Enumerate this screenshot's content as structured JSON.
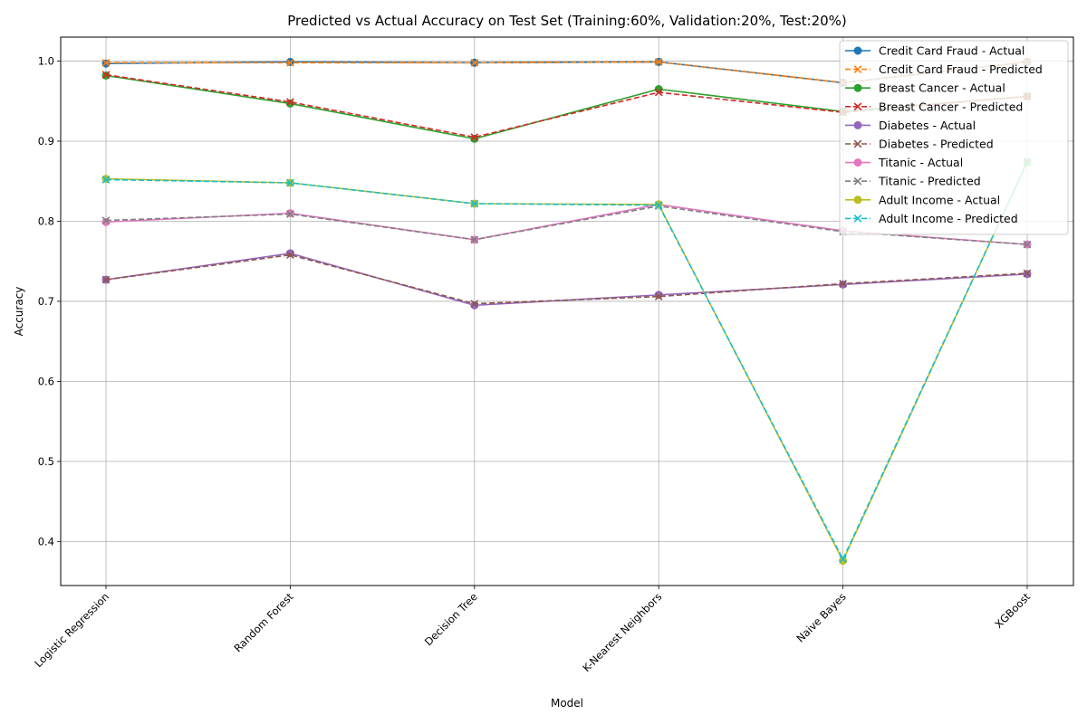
{
  "chart_data": {
    "type": "line",
    "title": "Predicted vs Actual Accuracy on Test Set (Training:60%, Validation:20%, Test:20%)",
    "xlabel": "Model",
    "ylabel": "Accuracy",
    "ylim": [
      0.345,
      1.03
    ],
    "yticks": [
      "0.4",
      "0.5",
      "0.6",
      "0.7",
      "0.8",
      "0.9",
      "1.0"
    ],
    "grid": true,
    "legend_position": "top-right",
    "categories": [
      "Logistic Regression",
      "Random Forest",
      "Decision Tree",
      "K-Nearest Neighbors",
      "Naive Bayes",
      "XGBoost"
    ],
    "series": [
      {
        "name": "Credit Card Fraud - Actual",
        "color": "#1f77b4",
        "dash": "solid",
        "marker": "circle",
        "values": [
          0.997,
          0.999,
          0.998,
          0.999,
          0.973,
          0.999
        ]
      },
      {
        "name": "Credit Card Fraud - Predicted",
        "color": "#ff7f0e",
        "dash": "dashed",
        "marker": "x",
        "values": [
          0.998,
          0.998,
          0.998,
          0.999,
          0.973,
          0.999
        ]
      },
      {
        "name": "Breast Cancer - Actual",
        "color": "#2ca02c",
        "dash": "solid",
        "marker": "circle",
        "values": [
          0.982,
          0.947,
          0.903,
          0.965,
          0.937,
          0.956
        ]
      },
      {
        "name": "Breast Cancer - Predicted",
        "color": "#d62728",
        "dash": "dashed",
        "marker": "x",
        "values": [
          0.983,
          0.949,
          0.905,
          0.961,
          0.936,
          0.956
        ]
      },
      {
        "name": "Diabetes - Actual",
        "color": "#9467bd",
        "dash": "solid",
        "marker": "circle",
        "values": [
          0.727,
          0.76,
          0.695,
          0.708,
          0.721,
          0.734
        ]
      },
      {
        "name": "Diabetes - Predicted",
        "color": "#8c564b",
        "dash": "dashed",
        "marker": "x",
        "values": [
          0.727,
          0.758,
          0.697,
          0.706,
          0.722,
          0.735
        ]
      },
      {
        "name": "Titanic - Actual",
        "color": "#e377c2",
        "dash": "solid",
        "marker": "circle",
        "values": [
          0.799,
          0.81,
          0.777,
          0.821,
          0.788,
          0.771
        ]
      },
      {
        "name": "Titanic - Predicted",
        "color": "#7f7f7f",
        "dash": "dashed",
        "marker": "x",
        "values": [
          0.801,
          0.809,
          0.777,
          0.819,
          0.787,
          0.771
        ]
      },
      {
        "name": "Adult Income - Actual",
        "color": "#bcbd22",
        "dash": "solid",
        "marker": "circle",
        "values": [
          0.853,
          0.848,
          0.822,
          0.821,
          0.376,
          0.874
        ]
      },
      {
        "name": "Adult Income - Predicted",
        "color": "#17becf",
        "dash": "dashed",
        "marker": "x",
        "values": [
          0.852,
          0.848,
          0.822,
          0.82,
          0.378,
          0.874
        ]
      }
    ]
  }
}
